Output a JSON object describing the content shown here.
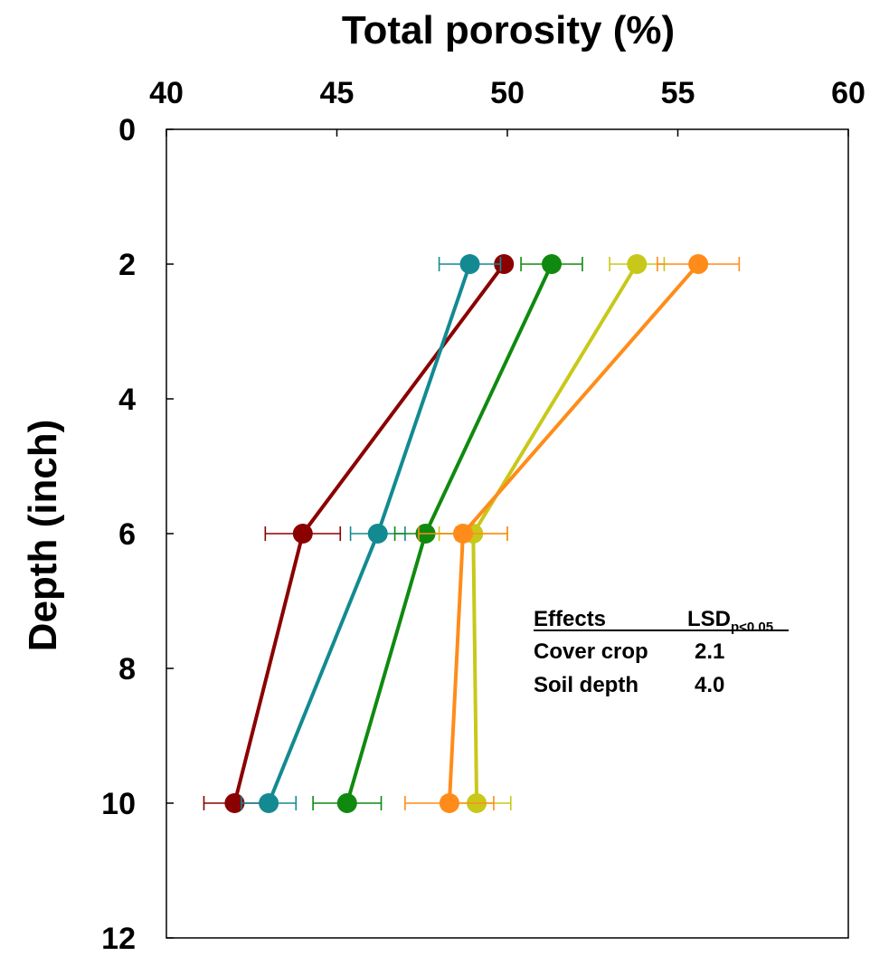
{
  "chart_data": {
    "type": "line",
    "title": "",
    "xlabel": "Total porosity (%)",
    "ylabel": "Depth (inch)",
    "xlim": [
      40,
      60
    ],
    "ylim": [
      0,
      12
    ],
    "y_inverted": true,
    "x_axis_position": "top",
    "x_ticks": [
      "40",
      "45",
      "50",
      "55",
      "60"
    ],
    "y_ticks": [
      "0",
      "2",
      "4",
      "6",
      "8",
      "10",
      "12"
    ],
    "grid": false,
    "legend": "none",
    "series": [
      {
        "color": "#8b0000",
        "points": [
          {
            "x": 49.9,
            "y": 2,
            "err": 0
          },
          {
            "x": 44.0,
            "y": 6,
            "err": 1.1
          },
          {
            "x": 42.0,
            "y": 10,
            "err": 0.9
          }
        ]
      },
      {
        "color": "#138a91",
        "points": [
          {
            "x": 48.9,
            "y": 2,
            "err": 0.9
          },
          {
            "x": 46.2,
            "y": 6,
            "err": 0.8
          },
          {
            "x": 43.0,
            "y": 10,
            "err": 0.8
          }
        ]
      },
      {
        "color": "#0f8a0f",
        "points": [
          {
            "x": 51.3,
            "y": 2,
            "err": 0.9
          },
          {
            "x": 47.6,
            "y": 6,
            "err": 0.9
          },
          {
            "x": 45.3,
            "y": 10,
            "err": 1.0
          }
        ]
      },
      {
        "color": "#c8c81a",
        "points": [
          {
            "x": 53.8,
            "y": 2,
            "err": 0.8
          },
          {
            "x": 49.0,
            "y": 6,
            "err": 1.0
          },
          {
            "x": 49.1,
            "y": 10,
            "err": 1.0
          }
        ]
      },
      {
        "color": "#ff8c1a",
        "points": [
          {
            "x": 55.6,
            "y": 2,
            "err": 1.2
          },
          {
            "x": 48.7,
            "y": 6,
            "err": 1.3
          },
          {
            "x": 48.3,
            "y": 10,
            "err": 1.3
          }
        ]
      }
    ],
    "annotation": {
      "header_effects": "Effects",
      "header_lsd": "LSD",
      "header_lsd_sub": "p<0.05",
      "rows": [
        {
          "label": "Cover crop",
          "value": "2.1"
        },
        {
          "label": "Soil depth",
          "value": "4.0"
        }
      ]
    }
  }
}
